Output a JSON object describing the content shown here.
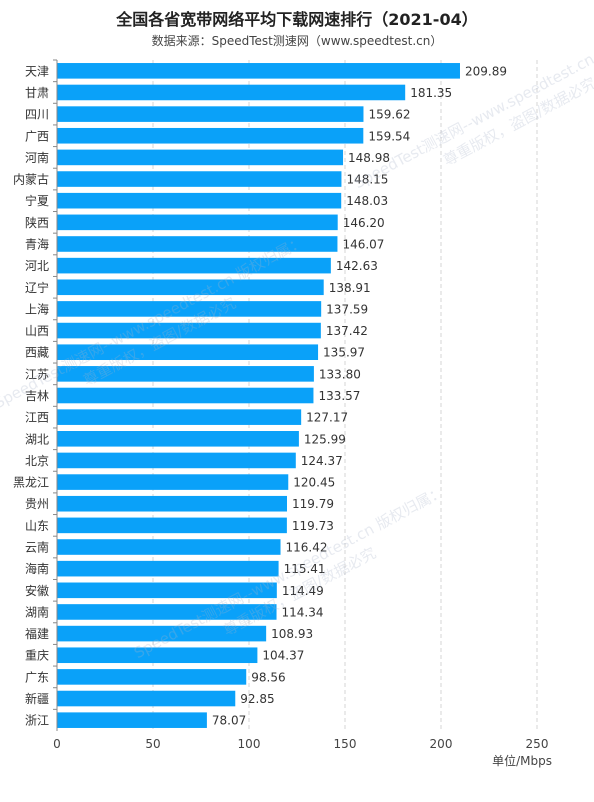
{
  "title": "全国各省宽带网络平均下载网速排行（2021-04）",
  "subtitle": "数据来源：SpeedTest测速网（www.speedtest.cn）",
  "watermark": {
    "line1": "SpeedTest测速网--www.speedtest.cn 版权归属：",
    "line2": "尊重版权，盗图/数据必究"
  },
  "colors": {
    "bar": "#0aa1f9",
    "grid": "#d4d4d4",
    "axis": "#888888",
    "text": "#333333"
  },
  "chart_data": {
    "type": "bar",
    "orientation": "horizontal",
    "categories": [
      "天津",
      "甘肃",
      "四川",
      "广西",
      "河南",
      "内蒙古",
      "宁夏",
      "陕西",
      "青海",
      "河北",
      "辽宁",
      "上海",
      "山西",
      "西藏",
      "江苏",
      "吉林",
      "江西",
      "湖北",
      "北京",
      "黑龙江",
      "贵州",
      "山东",
      "云南",
      "海南",
      "安徽",
      "湖南",
      "福建",
      "重庆",
      "广东",
      "新疆",
      "浙江"
    ],
    "values": [
      209.89,
      181.35,
      159.62,
      159.54,
      148.98,
      148.15,
      148.03,
      146.2,
      146.07,
      142.63,
      138.91,
      137.59,
      137.42,
      135.97,
      133.8,
      133.57,
      127.17,
      125.99,
      124.37,
      120.45,
      119.79,
      119.73,
      116.42,
      115.41,
      114.49,
      114.34,
      108.93,
      104.37,
      98.56,
      92.85,
      78.07
    ],
    "value_labels": [
      "209.89",
      "181.35",
      "159.62",
      "159.54",
      "148.98",
      "148.15",
      "148.03",
      "146.20",
      "146.07",
      "142.63",
      "138.91",
      "137.59",
      "137.42",
      "135.97",
      "133.80",
      "133.57",
      "127.17",
      "125.99",
      "124.37",
      "120.45",
      "119.79",
      "119.73",
      "116.42",
      "115.41",
      "114.49",
      "114.34",
      "108.93",
      "104.37",
      "98.56",
      "92.85",
      "78.07"
    ],
    "xlim": [
      0,
      250
    ],
    "xticks": [
      0,
      50,
      100,
      150,
      200,
      250
    ],
    "xlabel": "单位/Mbps",
    "ylabel": "",
    "grid": "vertical-dashed",
    "legend": "none"
  }
}
